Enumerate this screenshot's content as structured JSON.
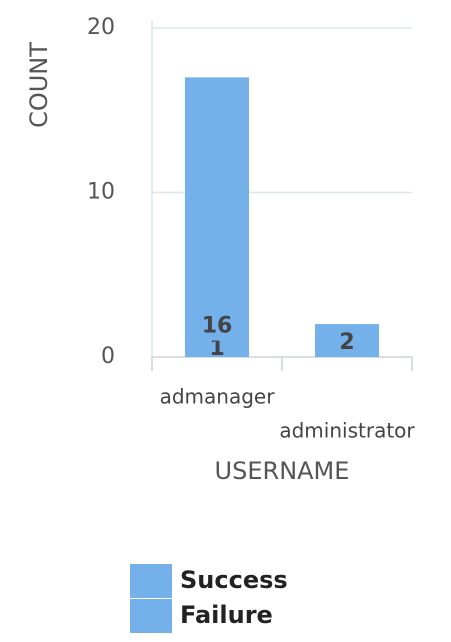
{
  "chart_data": {
    "type": "stacked_bar",
    "x_label": "USERNAME",
    "y_label": "COUNT",
    "categories": [
      "admanager",
      "administrator"
    ],
    "series": [
      {
        "name": "Success",
        "color": "#74b0ea",
        "values": [
          1,
          null
        ]
      },
      {
        "name": "Failure",
        "color": "#74b0ea",
        "values": [
          16,
          2
        ]
      }
    ],
    "ylim": [
      0,
      20
    ],
    "yticks": [
      0,
      10,
      20
    ],
    "grid": true
  }
}
